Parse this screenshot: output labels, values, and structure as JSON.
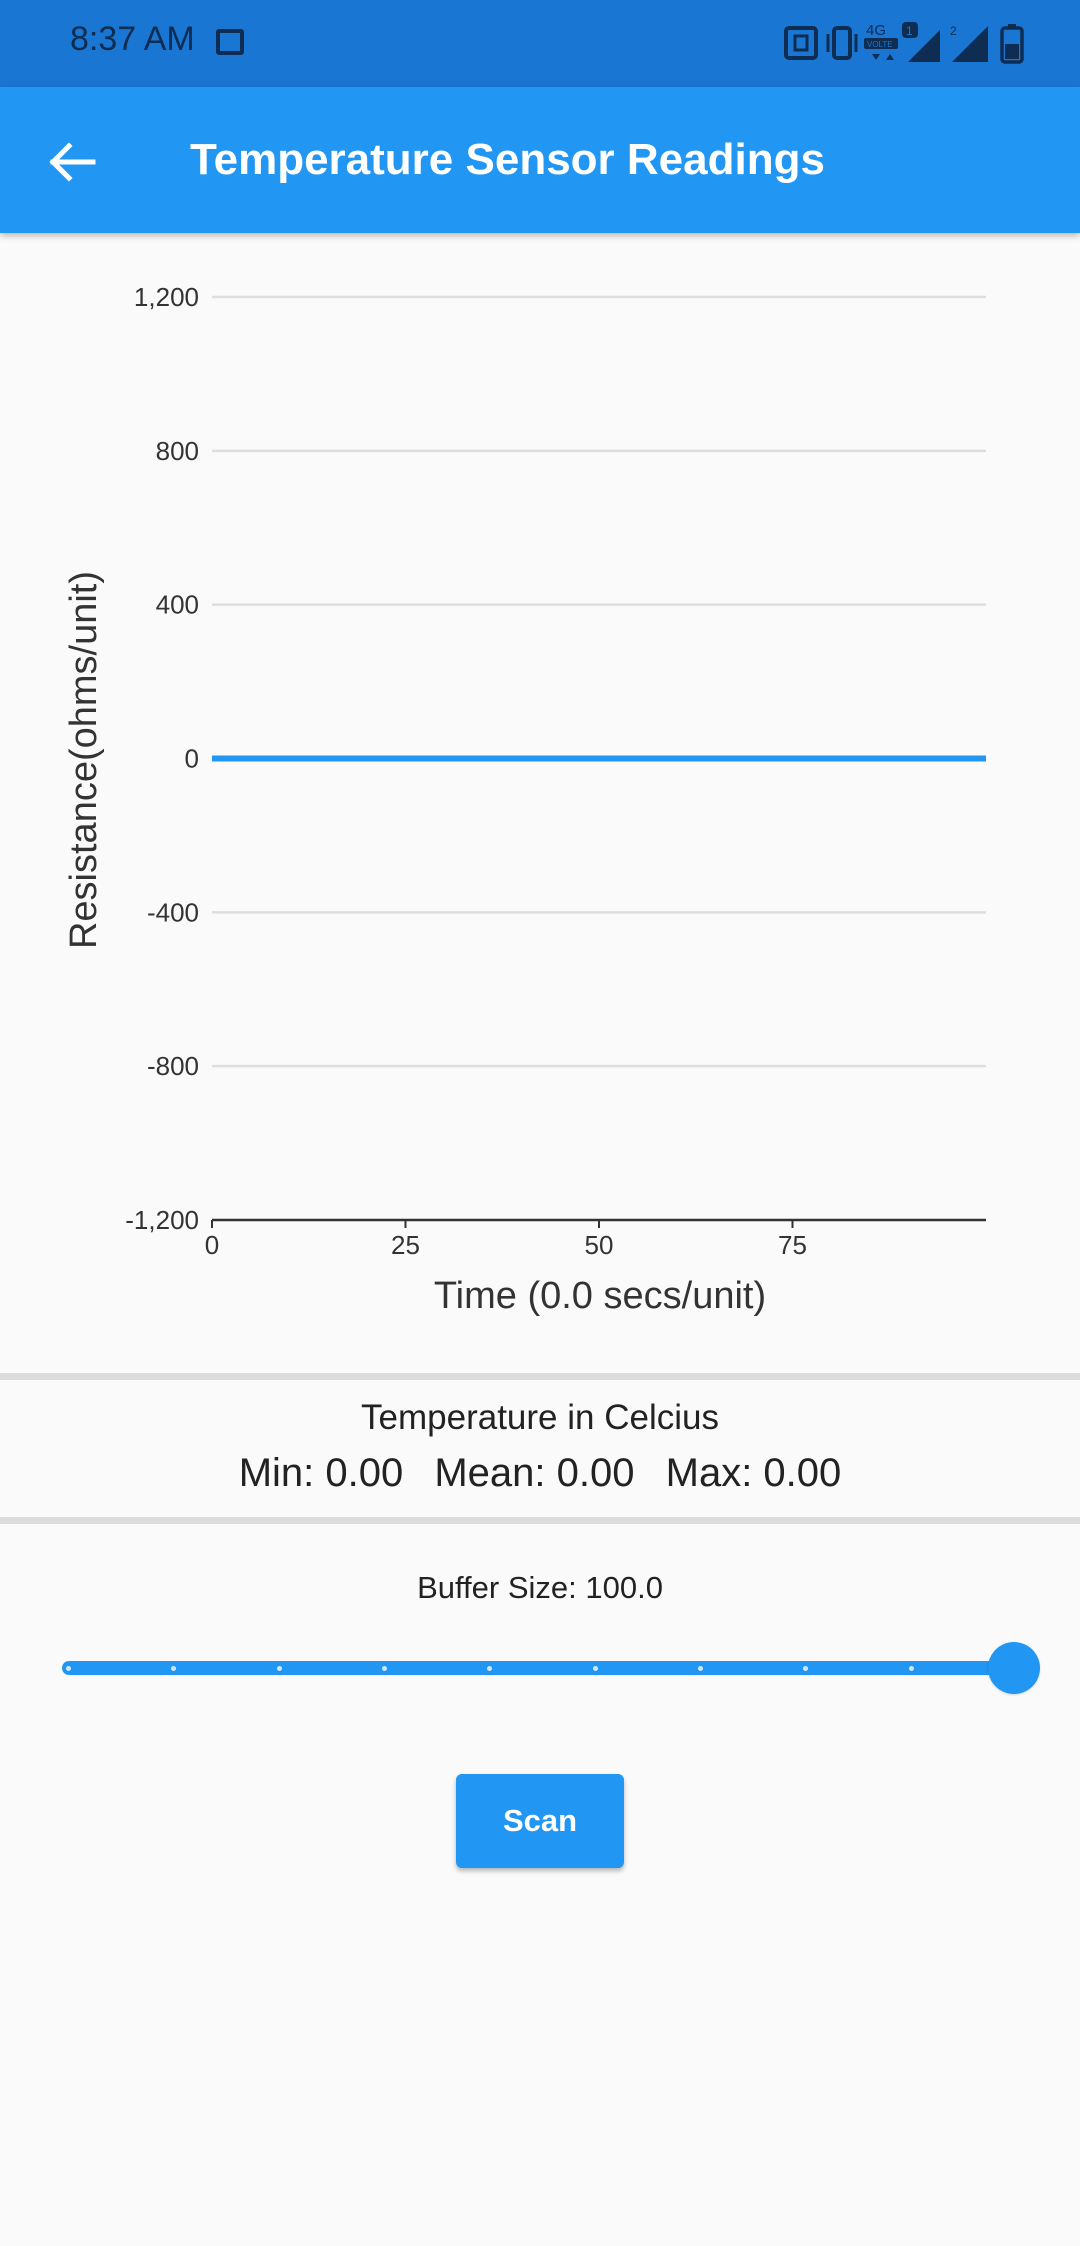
{
  "status_bar": {
    "time": "8:37 AM",
    "icons": [
      "image-icon",
      "nfc-icon",
      "vibrate-icon",
      "4g-volte-icon",
      "signal-sim1-icon",
      "signal-sim2-icon",
      "battery-icon"
    ],
    "network_label": "4G",
    "volte_label": "VOLTE",
    "sim1_label": "1",
    "sim2_label": "2"
  },
  "app_bar": {
    "title": "Temperature Sensor Readings",
    "back_icon": "arrow-back-icon"
  },
  "chart_data": {
    "type": "line",
    "xlabel": "Time (0.0 secs/unit)",
    "ylabel": "Resistance(ohms/unit)",
    "ylim": [
      -1200,
      1200
    ],
    "xlim": [
      0,
      100
    ],
    "yticks": [
      "1,200",
      "800",
      "400",
      "0",
      "-400",
      "-800",
      "-1,200"
    ],
    "ytick_values": [
      1200,
      800,
      400,
      0,
      -400,
      -800,
      -1200
    ],
    "xticks": [
      "0",
      "25",
      "50",
      "75"
    ],
    "xtick_values": [
      0,
      25,
      50,
      75
    ],
    "grid": true,
    "series": [
      {
        "x": [
          0,
          100
        ],
        "values": [
          0,
          0
        ],
        "color": "#2196f3"
      }
    ]
  },
  "stats": {
    "title": "Temperature in Celcius",
    "min": "Min: 0.00",
    "mean": "Mean: 0.00",
    "max": "Max: 0.00"
  },
  "buffer": {
    "label": "Buffer Size: 100.0",
    "value_fraction": 1.0,
    "divisions": 9
  },
  "scan_button": {
    "label": "Scan"
  },
  "colors": {
    "primary": "#2196f3",
    "status_bar": "#1976d2",
    "background": "#fafafa"
  }
}
